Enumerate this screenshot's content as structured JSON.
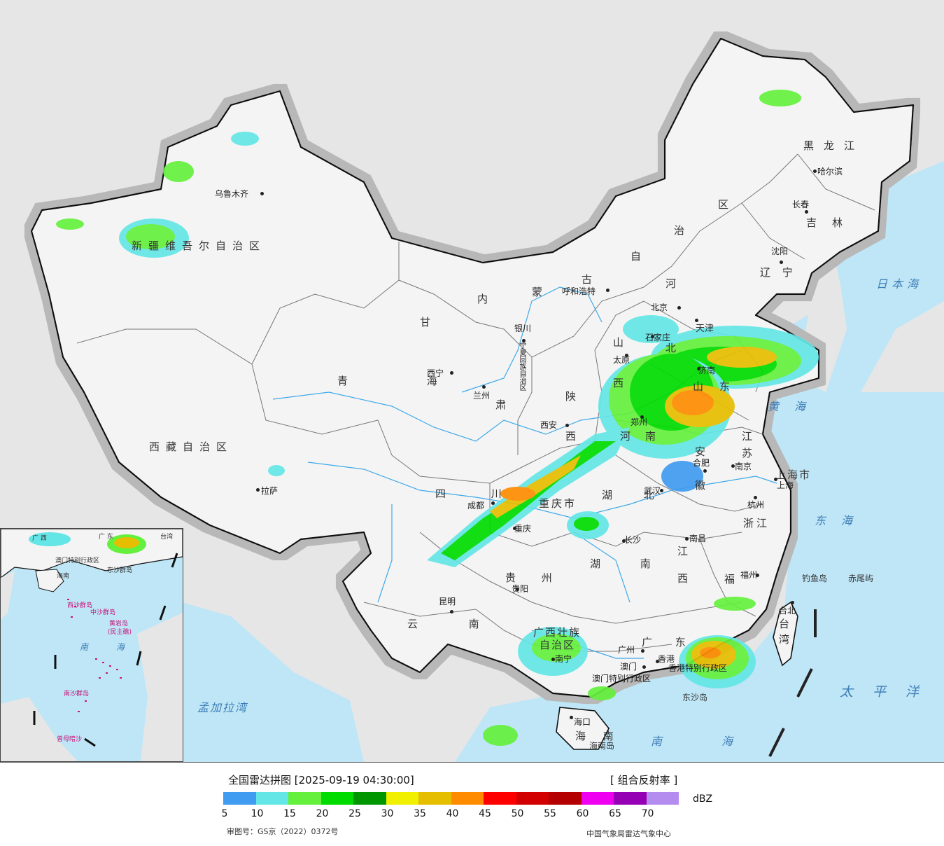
{
  "legend": {
    "title": "全国雷达拼图 [2025-09-19 04:30:00]",
    "product": "[ 组合反射率 ]",
    "unit": "dBZ",
    "approval": "审图号：GS京（2022）0372号",
    "source": "中国气象局雷达气象中心",
    "colors": [
      "#409cf0",
      "#64e6e6",
      "#64f03c",
      "#00dc00",
      "#009600",
      "#f0f000",
      "#e6be00",
      "#ff8c00",
      "#ff0000",
      "#d20000",
      "#b40000",
      "#f000f0",
      "#9600b4",
      "#b48cf0"
    ],
    "ticks": [
      "5",
      "10",
      "15",
      "20",
      "25",
      "30",
      "35",
      "40",
      "45",
      "50",
      "55",
      "60",
      "65",
      "70"
    ]
  },
  "map": {
    "regions": {
      "xinjiang": "新疆维吾尔自治区",
      "xizang": "西藏自治区",
      "qinghai": "青 海",
      "gansu": "甘",
      "neimenggu_1": "内",
      "neimenggu_2": "蒙",
      "neimenggu_3": "古",
      "neimenggu_4": "自",
      "neimenggu_5": "治",
      "neimenggu_6": "区",
      "heilongjiang": "黑龙江",
      "jilin": "吉林",
      "liaoning": "辽 宁",
      "hebei_1": "河",
      "hebei_2": "北",
      "shanxi_1": "山",
      "shanxi_2": "西",
      "shaanxi_1": "陕",
      "shaanxi_2": "西",
      "henan_1": "河",
      "henan_2": "南",
      "shandong_1": "山",
      "shandong_2": "东",
      "jiangsu_1": "江",
      "jiangsu_2": "苏",
      "anhui_1": "安",
      "anhui_2": "徽",
      "sichuan": "四 川",
      "chongqing": "重庆市",
      "hubei": "湖 北",
      "hunan": "湖 南",
      "jiangxi_1": "江",
      "jiangxi_2": "西",
      "zhejiang": "浙江",
      "fujian": "福",
      "guizhou": "贵 州",
      "yunnan": "云 南",
      "guangxi_1": "广西壮族",
      "guangxi_2": "自治区",
      "guangdong": "广 东",
      "hainan": "海 南",
      "taiwan_1": "台",
      "taiwan_2": "湾",
      "ningxia": "宁夏回族自治区",
      "shanghai": "上海市",
      "tianjin": "天津",
      "hk": "香港特别行政区",
      "macao": "澳门特别行政区",
      "gansu_2": "肃"
    },
    "cities": {
      "urumqi": "乌鲁木齐",
      "lhasa": "拉萨",
      "xining": "西宁",
      "lanzhou": "兰州",
      "yinchuan": "银川",
      "hohhot": "呼和浩特",
      "beijing": "北京",
      "tianjin": "天津",
      "shijiazhuang": "石家庄",
      "taiyuan": "太原",
      "jinan": "济南",
      "zhengzhou": "郑州",
      "xian": "西安",
      "hefei": "合肥",
      "nanjing": "南京",
      "shanghai": "上海",
      "hangzhou": "杭州",
      "wuhan": "武汉",
      "chengdu": "成都",
      "chongqing": "重庆",
      "changsha": "长沙",
      "nanchang": "南昌",
      "fuzhou": "福州",
      "guiyang": "贵阳",
      "kunming": "昆明",
      "nanning": "南宁",
      "guangzhou": "广州",
      "macao": "澳门",
      "hongkong": "香港",
      "haikou": "海口",
      "taibei": "台北",
      "shenyang": "沈阳",
      "changchun": "长春",
      "harbin": "哈尔滨"
    },
    "seas": {
      "japan_sea": "日本海",
      "yellow_sea": "黄海",
      "east_sea": "东海",
      "pacific": "太平洋",
      "south_sea": "南 海",
      "bengal": "孟加拉湾"
    },
    "islands": {
      "diaoyu": "钓鱼岛",
      "chiwei": "赤尾屿",
      "dongsha": "东沙岛",
      "hainan_island": "海南岛"
    },
    "inset": {
      "south_sea": "南 海",
      "zhongsha": "中沙群岛",
      "huangyan": "黄岩岛",
      "minzhu": "(民主礁)",
      "nansha": "南沙群岛",
      "zengmu": "曾母暗沙",
      "xisha": "西沙群岛",
      "guangxi": "广 西",
      "guangdong": "广 东",
      "taiwan": "台湾",
      "dongsha": "东沙群岛",
      "hainan": "海南",
      "hk_macao": "澳门特别行政区"
    }
  }
}
